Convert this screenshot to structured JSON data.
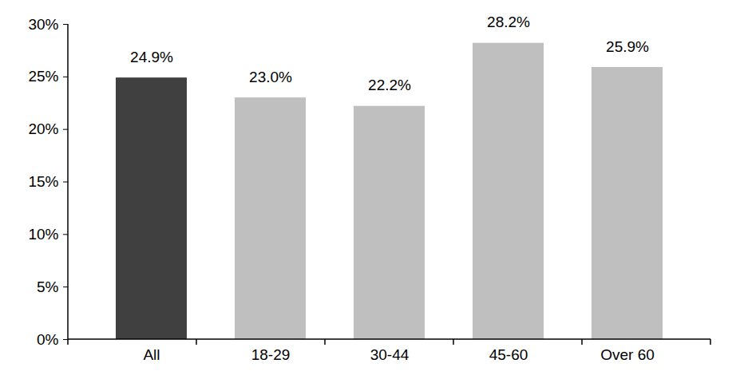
{
  "chart_data": {
    "type": "bar",
    "categories": [
      "All",
      "18-29",
      "30-44",
      "45-60",
      "Over 60"
    ],
    "values": [
      24.9,
      23.0,
      22.2,
      28.2,
      25.9
    ],
    "value_labels": [
      "24.9%",
      "23.0%",
      "22.2%",
      "28.2%",
      "25.9%"
    ],
    "colors": [
      "#404040",
      "#bfbfbf",
      "#bfbfbf",
      "#bfbfbf",
      "#bfbfbf"
    ],
    "ylim": [
      0,
      30
    ],
    "yticks": [
      {
        "value": 0,
        "label": "0%"
      },
      {
        "value": 5,
        "label": "5%"
      },
      {
        "value": 10,
        "label": "10%"
      },
      {
        "value": 15,
        "label": "15%"
      },
      {
        "value": 20,
        "label": "20%"
      },
      {
        "value": 25,
        "label": "25%"
      },
      {
        "value": 30,
        "label": "30%"
      }
    ],
    "data_labels": true,
    "grid": false
  }
}
